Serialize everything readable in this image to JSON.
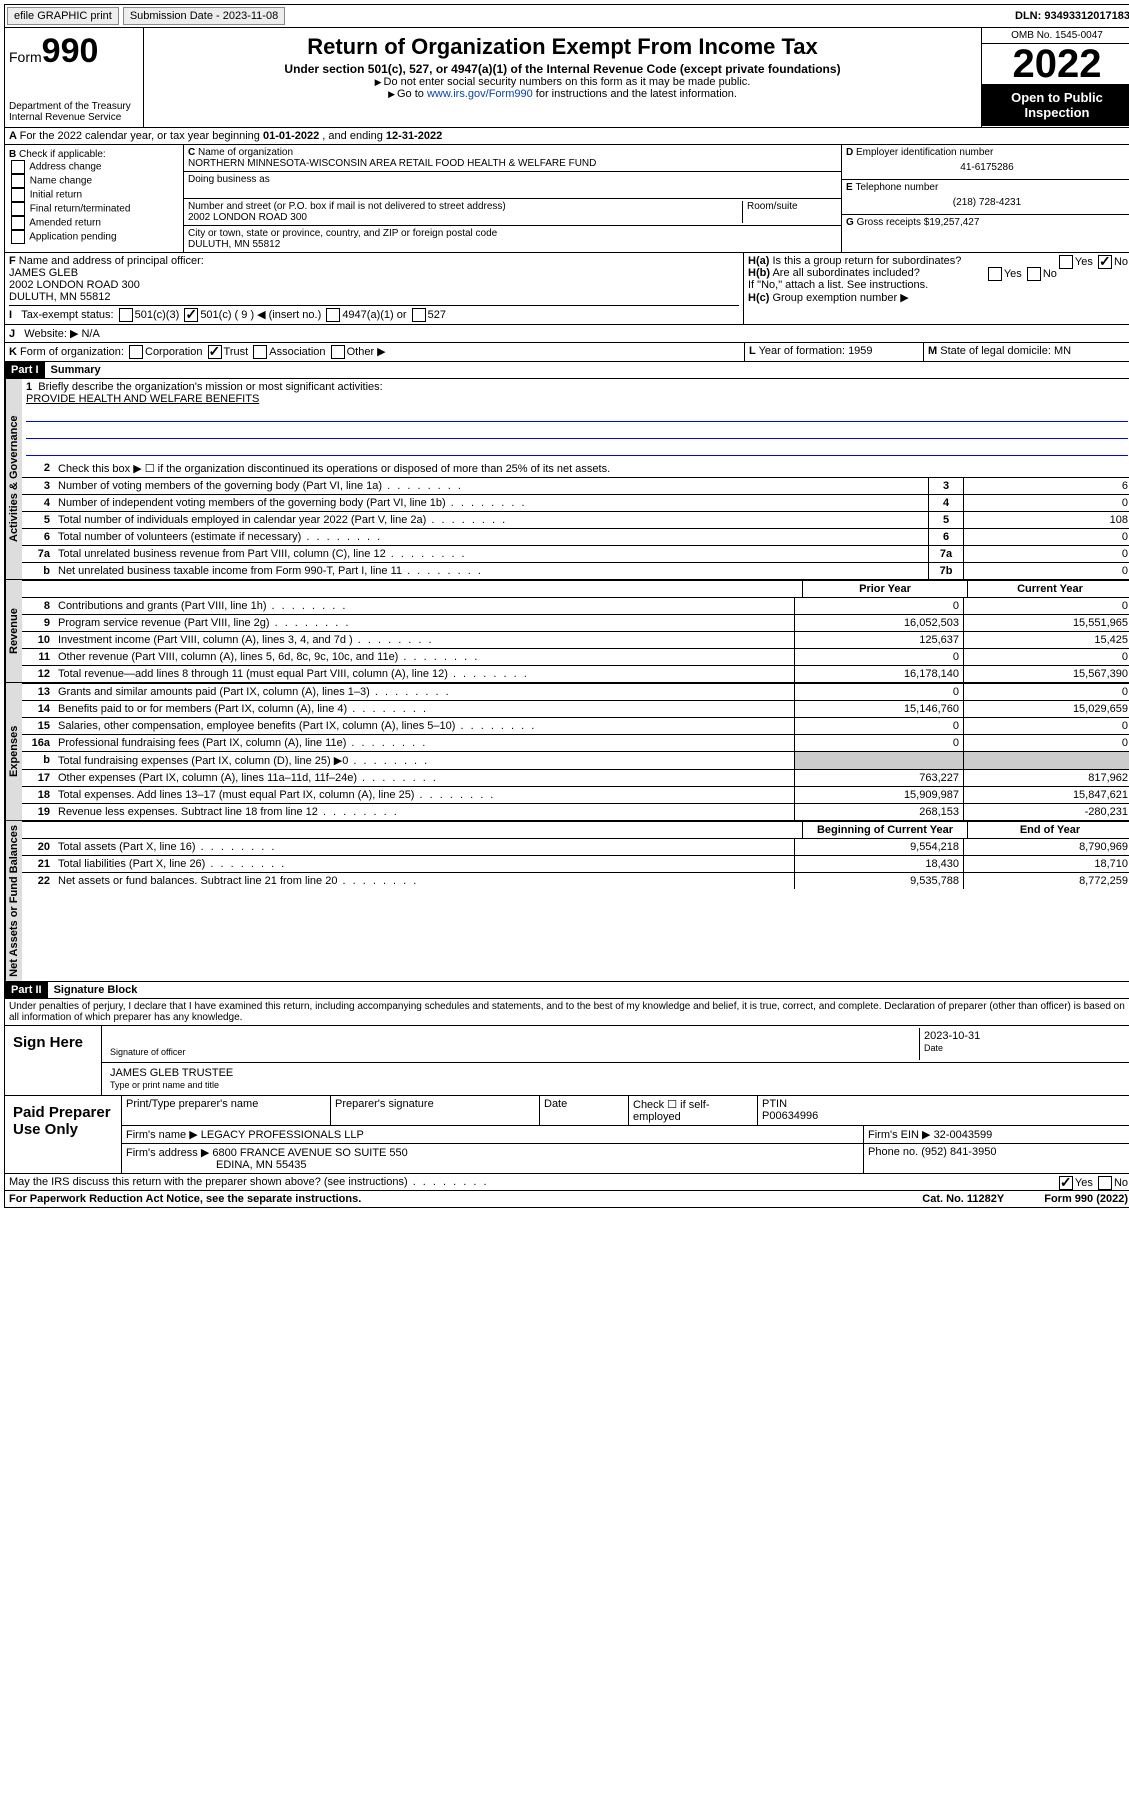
{
  "topbar": {
    "efile": "efile GRAPHIC print",
    "subdate_label": "Submission Date - ",
    "subdate": "2023-11-08",
    "dln_label": "DLN: ",
    "dln": "93493312017183"
  },
  "header": {
    "form_label": "Form",
    "form_no": "990",
    "dept": "Department of the Treasury\nInternal Revenue Service",
    "title": "Return of Organization Exempt From Income Tax",
    "subtitle": "Under section 501(c), 527, or 4947(a)(1) of the Internal Revenue Code (except private foundations)",
    "note1": "Do not enter social security numbers on this form as it may be made public.",
    "note2_pre": "Go to ",
    "note2_link": "www.irs.gov/Form990",
    "note2_post": " for instructions and the latest information.",
    "omb": "OMB No. 1545-0047",
    "year": "2022",
    "open": "Open to Public Inspection"
  },
  "lineA": {
    "text": "For the 2022 calendar year, or tax year beginning ",
    "begin": "01-01-2022",
    "mid": " , and ending ",
    "end": "12-31-2022"
  },
  "colB": {
    "hdr": "Check if applicable:",
    "items": [
      "Address change",
      "Name change",
      "Initial return",
      "Final return/terminated",
      "Amended return",
      "Application pending"
    ]
  },
  "colC": {
    "name_label": "Name of organization",
    "name": "NORTHERN MINNESOTA-WISCONSIN AREA RETAIL FOOD HEALTH & WELFARE FUND",
    "dba_label": "Doing business as",
    "dba": "",
    "street_label": "Number and street (or P.O. box if mail is not delivered to street address)",
    "room_label": "Room/suite",
    "street": "2002 LONDON ROAD 300",
    "city_label": "City or town, state or province, country, and ZIP or foreign postal code",
    "city": "DULUTH, MN  55812"
  },
  "colD": {
    "ein_label": "Employer identification number",
    "ein": "41-6175286",
    "tel_label": "Telephone number",
    "tel": "(218) 728-4231",
    "gross_label": "Gross receipts $",
    "gross": "19,257,427"
  },
  "F": {
    "label": "Name and address of principal officer:",
    "name": "JAMES GLEB",
    "addr1": "2002 LONDON ROAD 300",
    "addr2": "DULUTH, MN  55812"
  },
  "H": {
    "a": "Is this a group return for subordinates?",
    "b": "Are all subordinates included?",
    "note": "If \"No,\" attach a list. See instructions.",
    "c": "Group exemption number ▶",
    "yes": "Yes",
    "no": "No"
  },
  "I": {
    "label": "Tax-exempt status:",
    "opts": [
      "501(c)(3)",
      "501(c) ( 9 ) ◀ (insert no.)",
      "4947(a)(1) or",
      "527"
    ]
  },
  "J": {
    "label": "Website: ▶",
    "val": "N/A"
  },
  "K": {
    "label": "Form of organization:",
    "opts": [
      "Corporation",
      "Trust",
      "Association",
      "Other ▶"
    ]
  },
  "L": {
    "label": "Year of formation:",
    "val": "1959"
  },
  "M": {
    "label": "State of legal domicile:",
    "val": "MN"
  },
  "partI": {
    "hdr": "Part I",
    "title": "Summary"
  },
  "q1": {
    "num": "1",
    "txt": "Briefly describe the organization's mission or most significant activities:",
    "ans": "PROVIDE HEALTH AND WELFARE BENEFITS"
  },
  "q2": {
    "num": "2",
    "txt": "Check this box ▶ ☐  if the organization discontinued its operations or disposed of more than 25% of its net assets."
  },
  "govRows": [
    {
      "n": "3",
      "t": "Number of voting members of the governing body (Part VI, line 1a)",
      "b": "3",
      "v": "6"
    },
    {
      "n": "4",
      "t": "Number of independent voting members of the governing body (Part VI, line 1b)",
      "b": "4",
      "v": "0"
    },
    {
      "n": "5",
      "t": "Total number of individuals employed in calendar year 2022 (Part V, line 2a)",
      "b": "5",
      "v": "108"
    },
    {
      "n": "6",
      "t": "Total number of volunteers (estimate if necessary)",
      "b": "6",
      "v": "0"
    },
    {
      "n": "7a",
      "t": "Total unrelated business revenue from Part VIII, column (C), line 12",
      "b": "7a",
      "v": "0"
    },
    {
      "n": "b",
      "t": "Net unrelated business taxable income from Form 990-T, Part I, line 11",
      "b": "7b",
      "v": "0"
    }
  ],
  "tabs": {
    "gov": "Activities & Governance",
    "rev": "Revenue",
    "exp": "Expenses",
    "net": "Net Assets or Fund Balances"
  },
  "colHdrs": {
    "prior": "Prior Year",
    "current": "Current Year",
    "begin": "Beginning of Current Year",
    "end": "End of Year"
  },
  "revRows": [
    {
      "n": "8",
      "t": "Contributions and grants (Part VIII, line 1h)",
      "p": "0",
      "c": "0"
    },
    {
      "n": "9",
      "t": "Program service revenue (Part VIII, line 2g)",
      "p": "16,052,503",
      "c": "15,551,965"
    },
    {
      "n": "10",
      "t": "Investment income (Part VIII, column (A), lines 3, 4, and 7d )",
      "p": "125,637",
      "c": "15,425"
    },
    {
      "n": "11",
      "t": "Other revenue (Part VIII, column (A), lines 5, 6d, 8c, 9c, 10c, and 11e)",
      "p": "0",
      "c": "0"
    },
    {
      "n": "12",
      "t": "Total revenue—add lines 8 through 11 (must equal Part VIII, column (A), line 12)",
      "p": "16,178,140",
      "c": "15,567,390"
    }
  ],
  "expRows": [
    {
      "n": "13",
      "t": "Grants and similar amounts paid (Part IX, column (A), lines 1–3)",
      "p": "0",
      "c": "0"
    },
    {
      "n": "14",
      "t": "Benefits paid to or for members (Part IX, column (A), line 4)",
      "p": "15,146,760",
      "c": "15,029,659"
    },
    {
      "n": "15",
      "t": "Salaries, other compensation, employee benefits (Part IX, column (A), lines 5–10)",
      "p": "0",
      "c": "0"
    },
    {
      "n": "16a",
      "t": "Professional fundraising fees (Part IX, column (A), line 11e)",
      "p": "0",
      "c": "0"
    },
    {
      "n": "b",
      "t": "Total fundraising expenses (Part IX, column (D), line 25) ▶0",
      "p": "",
      "c": "",
      "shade": true
    },
    {
      "n": "17",
      "t": "Other expenses (Part IX, column (A), lines 11a–11d, 11f–24e)",
      "p": "763,227",
      "c": "817,962"
    },
    {
      "n": "18",
      "t": "Total expenses. Add lines 13–17 (must equal Part IX, column (A), line 25)",
      "p": "15,909,987",
      "c": "15,847,621"
    },
    {
      "n": "19",
      "t": "Revenue less expenses. Subtract line 18 from line 12",
      "p": "268,153",
      "c": "-280,231"
    }
  ],
  "netRows": [
    {
      "n": "20",
      "t": "Total assets (Part X, line 16)",
      "p": "9,554,218",
      "c": "8,790,969"
    },
    {
      "n": "21",
      "t": "Total liabilities (Part X, line 26)",
      "p": "18,430",
      "c": "18,710"
    },
    {
      "n": "22",
      "t": "Net assets or fund balances. Subtract line 21 from line 20",
      "p": "9,535,788",
      "c": "8,772,259"
    }
  ],
  "partII": {
    "hdr": "Part II",
    "title": "Signature Block"
  },
  "penalties": "Under penalties of perjury, I declare that I have examined this return, including accompanying schedules and statements, and to the best of my knowledge and belief, it is true, correct, and complete. Declaration of preparer (other than officer) is based on all information of which preparer has any knowledge.",
  "sign": {
    "label": "Sign Here",
    "sig_label": "Signature of officer",
    "date_label": "Date",
    "date": "2023-10-31",
    "name": "JAMES GLEB  TRUSTEE",
    "name_label": "Type or print name and title"
  },
  "prep": {
    "label": "Paid Preparer Use Only",
    "c1": "Print/Type preparer's name",
    "c2": "Preparer's signature",
    "c3": "Date",
    "c4_pre": "Check ☐ if self-employed",
    "c5": "PTIN",
    "ptin": "P00634996",
    "firm_label": "Firm's name ▶",
    "firm": "LEGACY PROFESSIONALS LLP",
    "ein_label": "Firm's EIN ▶",
    "ein": "32-0043599",
    "addr_label": "Firm's address ▶",
    "addr1": "6800 FRANCE AVENUE SO SUITE 550",
    "addr2": "EDINA, MN  55435",
    "phone_label": "Phone no.",
    "phone": "(952) 841-3950"
  },
  "may": {
    "txt": "May the IRS discuss this return with the preparer shown above? (see instructions)",
    "yes": "Yes",
    "no": "No"
  },
  "footer": {
    "left": "For Paperwork Reduction Act Notice, see the separate instructions.",
    "mid": "Cat. No. 11282Y",
    "right": "Form 990 (2022)"
  }
}
